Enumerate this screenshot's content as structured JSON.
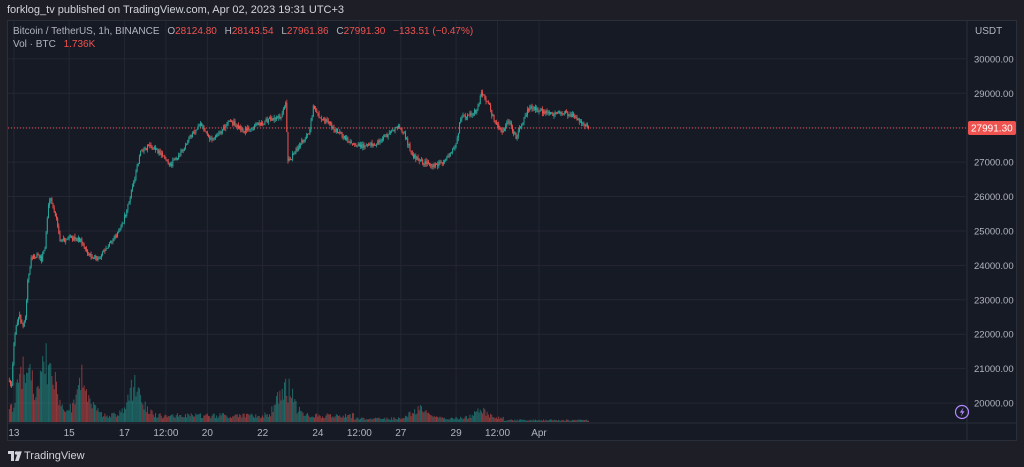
{
  "header": {
    "title": "forklog_tv published on TradingView.com, Apr 02, 2023 19:31 UTC+3"
  },
  "legend": {
    "symbol": "Bitcoin / TetherUS, 1h, BINANCE",
    "o_label": "O",
    "o_value": "28124.80",
    "h_label": "H",
    "h_value": "28143.54",
    "l_label": "L",
    "l_value": "27961.86",
    "c_label": "C",
    "c_value": "27991.30",
    "change": "−133.51 (−0.47%)",
    "vol_label": "Vol · BTC",
    "vol_value": "1.736K"
  },
  "footer": {
    "brand": "TradingView"
  },
  "colors": {
    "up": "#26a69a",
    "down": "#ef5350",
    "grid": "#242733",
    "price_line": "#ef5350"
  },
  "icons": {
    "brand_logo": "tradingview-logo-icon",
    "flag": "lightning-icon"
  },
  "chart_data": {
    "type": "candlestick",
    "title": "Bitcoin / TetherUS, 1h, BINANCE",
    "y_axis_unit": "USDT",
    "y_ticks": [
      20000,
      21000,
      22000,
      23000,
      24000,
      25000,
      26000,
      27000,
      28000,
      29000,
      30000
    ],
    "ylim": [
      19450,
      31100
    ],
    "y_tick_labels": [
      "20000.00",
      "21000.00",
      "22000.00",
      "23000.00",
      "24000.00",
      "25000.00",
      "26000.00",
      "27000.00",
      "28000.00",
      "29000.00",
      "30000.00"
    ],
    "x_tick_labels": [
      "13",
      "15",
      "17",
      "12:00",
      "20",
      "22",
      "24",
      "12:00",
      "27",
      "29",
      "12:00",
      "Apr"
    ],
    "last_price_label": "27991.30",
    "last_price": 27991.3,
    "grid": true,
    "series": [
      {
        "name": "price",
        "anchors": [
          [
            "2023-03-12 20:00",
            20650
          ],
          [
            "2023-03-12 22:00",
            20500
          ],
          [
            "2023-03-13 00:00",
            21700
          ],
          [
            "2023-03-13 02:00",
            22300
          ],
          [
            "2023-03-13 05:00",
            22500
          ],
          [
            "2023-03-13 08:00",
            22200
          ],
          [
            "2023-03-13 10:00",
            22450
          ],
          [
            "2023-03-13 12:00",
            23600
          ],
          [
            "2023-03-13 15:00",
            24200
          ],
          [
            "2023-03-13 18:00",
            24300
          ],
          [
            "2023-03-14 00:00",
            24200
          ],
          [
            "2023-03-14 03:00",
            24550
          ],
          [
            "2023-03-14 06:00",
            25800
          ],
          [
            "2023-03-14 08:00",
            25950
          ],
          [
            "2023-03-14 12:00",
            25500
          ],
          [
            "2023-03-14 16:00",
            24700
          ],
          [
            "2023-03-15 00:00",
            24800
          ],
          [
            "2023-03-15 10:00",
            24750
          ],
          [
            "2023-03-15 14:00",
            24500
          ],
          [
            "2023-03-15 20:00",
            24150
          ],
          [
            "2023-03-16 04:00",
            24300
          ],
          [
            "2023-03-16 12:00",
            24650
          ],
          [
            "2023-03-16 20:00",
            25000
          ],
          [
            "2023-03-17 02:00",
            25600
          ],
          [
            "2023-03-17 08:00",
            26400
          ],
          [
            "2023-03-17 14:00",
            27300
          ],
          [
            "2023-03-17 22:00",
            27500
          ],
          [
            "2023-03-18 10:00",
            27200
          ],
          [
            "2023-03-18 16:00",
            26900
          ],
          [
            "2023-03-19 02:00",
            27300
          ],
          [
            "2023-03-19 10:00",
            27800
          ],
          [
            "2023-03-19 18:00",
            28100
          ],
          [
            "2023-03-20 04:00",
            27600
          ],
          [
            "2023-03-20 10:00",
            27800
          ],
          [
            "2023-03-20 20:00",
            28200
          ],
          [
            "2023-03-21 08:00",
            27900
          ],
          [
            "2023-03-21 20:00",
            28100
          ],
          [
            "2023-03-22 06:00",
            28250
          ],
          [
            "2023-03-22 16:00",
            28300
          ],
          [
            "2023-03-22 20:00",
            28700
          ],
          [
            "2023-03-22 22:00",
            27000
          ],
          [
            "2023-03-23 04:00",
            27300
          ],
          [
            "2023-03-23 10:00",
            27600
          ],
          [
            "2023-03-23 16:00",
            27800
          ],
          [
            "2023-03-23 20:00",
            28600
          ],
          [
            "2023-03-24 02:00",
            28300
          ],
          [
            "2023-03-24 10:00",
            28100
          ],
          [
            "2023-03-24 20:00",
            27800
          ],
          [
            "2023-03-25 08:00",
            27500
          ],
          [
            "2023-03-25 18:00",
            27450
          ],
          [
            "2023-03-26 06:00",
            27600
          ],
          [
            "2023-03-26 16:00",
            27900
          ],
          [
            "2023-03-26 22:00",
            28000
          ],
          [
            "2023-03-27 02:00",
            27900
          ],
          [
            "2023-03-27 10:00",
            27200
          ],
          [
            "2023-03-27 18:00",
            27000
          ],
          [
            "2023-03-28 04:00",
            26900
          ],
          [
            "2023-03-28 12:00",
            27000
          ],
          [
            "2023-03-28 18:00",
            27200
          ],
          [
            "2023-03-29 00:00",
            27500
          ],
          [
            "2023-03-29 04:00",
            28300
          ],
          [
            "2023-03-29 12:00",
            28400
          ],
          [
            "2023-03-29 18:00",
            28500
          ],
          [
            "2023-03-29 22:00",
            29000
          ],
          [
            "2023-03-30 04:00",
            28700
          ],
          [
            "2023-03-30 10:00",
            28100
          ],
          [
            "2023-03-30 16:00",
            27900
          ],
          [
            "2023-03-30 22:00",
            28200
          ],
          [
            "2023-03-31 04:00",
            27700
          ],
          [
            "2023-03-31 10:00",
            28200
          ],
          [
            "2023-03-31 16:00",
            28600
          ],
          [
            "2023-04-01 00:00",
            28500
          ],
          [
            "2023-04-01 10:00",
            28400
          ],
          [
            "2023-04-01 20:00",
            28450
          ],
          [
            "2023-04-02 06:00",
            28350
          ],
          [
            "2023-04-02 14:00",
            28100
          ],
          [
            "2023-04-02 19:00",
            27991.3
          ]
        ]
      }
    ],
    "volume_peaks_btc": [
      [
        "2023-03-13 10:00",
        7.5
      ],
      [
        "2023-03-14 06:00",
        8.5
      ],
      [
        "2023-03-15 12:00",
        5.5
      ],
      [
        "2023-03-17 10:00",
        4.5
      ],
      [
        "2023-03-22 20:00",
        4.5
      ],
      [
        "2023-03-27 16:00",
        2.5
      ],
      [
        "2023-03-29 22:00",
        1.8
      ]
    ]
  }
}
